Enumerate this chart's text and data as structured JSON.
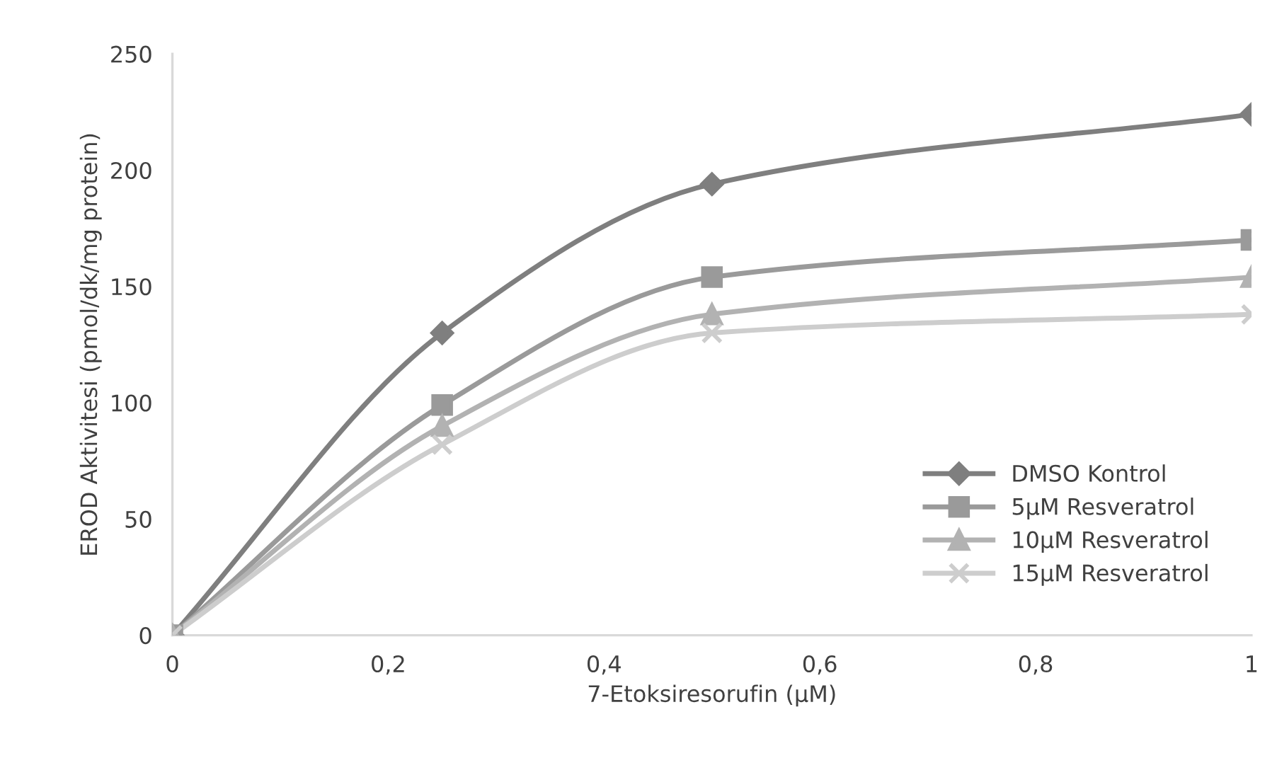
{
  "chart_data": {
    "type": "line",
    "xlabel": "7-Etoksiresorufin (µM)",
    "ylabel": "EROD Aktivitesi (pmol/dk/mg protein)",
    "x": [
      0,
      0.25,
      0.5,
      1
    ],
    "series": [
      {
        "name": "DMSO Kontrol",
        "color": "#7f7f7f",
        "marker": "diamond",
        "values": [
          0,
          130,
          194,
          224
        ]
      },
      {
        "name": "5µM Resveratrol",
        "color": "#9a9a9a",
        "marker": "square",
        "values": [
          0,
          99,
          154,
          170
        ]
      },
      {
        "name": "10µM Resveratrol",
        "color": "#b2b2b2",
        "marker": "triangle",
        "values": [
          0,
          90,
          138,
          154
        ]
      },
      {
        "name": "15µM Resveratrol",
        "color": "#cdcdcd",
        "marker": "cross",
        "values": [
          0,
          82,
          130,
          138
        ]
      }
    ],
    "xlim": [
      0,
      1
    ],
    "ylim": [
      0,
      250
    ],
    "xticks": [
      0,
      {
        "value": 0.2,
        "label": "0,2"
      },
      {
        "value": 0.4,
        "label": "0,4"
      },
      {
        "value": 0.6,
        "label": "0,6"
      },
      {
        "value": 0.8,
        "label": "0,8"
      },
      1
    ],
    "yticks": [
      0,
      50,
      100,
      150,
      200,
      250
    ],
    "grid": false,
    "legend": "lower right",
    "line_style": "solid"
  }
}
